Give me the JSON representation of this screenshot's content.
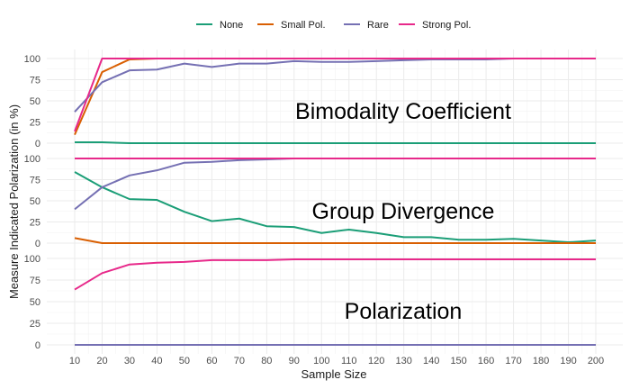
{
  "chart_data": {
    "type": "line",
    "xlabel": "Sample Size",
    "ylabel": "Measure Indicated Polarization (in %)",
    "x": [
      10,
      20,
      30,
      40,
      50,
      60,
      70,
      80,
      90,
      100,
      110,
      120,
      130,
      140,
      150,
      160,
      170,
      180,
      190,
      200
    ],
    "x_ticks": [
      "10",
      "20",
      "30",
      "40",
      "50",
      "60",
      "70",
      "80",
      "90",
      "100",
      "110",
      "120",
      "130",
      "140",
      "150",
      "160",
      "170",
      "180",
      "190",
      "200"
    ],
    "y_ticks": [
      "0",
      "25",
      "50",
      "75",
      "100"
    ],
    "ylim": [
      0,
      100
    ],
    "grid": true,
    "legend": {
      "position": "top",
      "entries": [
        {
          "name": "None",
          "color": "#1b9e77"
        },
        {
          "name": "Small Pol.",
          "color": "#d95f02"
        },
        {
          "name": "Rare",
          "color": "#7570b3"
        },
        {
          "name": "Strong Pol.",
          "color": "#e7298a"
        }
      ]
    },
    "panels": [
      {
        "label": "Bimodality Coefficient",
        "series": [
          {
            "name": "None",
            "color": "#1b9e77",
            "values": [
              1,
              1,
              0,
              0,
              0,
              0,
              0,
              0,
              0,
              0,
              0,
              0,
              0,
              0,
              0,
              0,
              0,
              0,
              0,
              0
            ]
          },
          {
            "name": "Small Pol.",
            "color": "#d95f02",
            "values": [
              10,
              84,
              99,
              100,
              100,
              100,
              100,
              100,
              100,
              100,
              100,
              100,
              100,
              100,
              100,
              100,
              100,
              100,
              100,
              100
            ]
          },
          {
            "name": "Rare",
            "color": "#7570b3",
            "values": [
              37,
              72,
              86,
              87,
              94,
              90,
              94,
              94,
              97,
              96,
              96,
              97,
              98,
              99,
              99,
              99,
              100,
              100,
              100,
              100
            ]
          },
          {
            "name": "Strong Pol.",
            "color": "#e7298a",
            "values": [
              14,
              100,
              100,
              100,
              100,
              100,
              100,
              100,
              100,
              100,
              100,
              100,
              100,
              100,
              100,
              100,
              100,
              100,
              100,
              100
            ]
          }
        ]
      },
      {
        "label": "Group Divergence",
        "series": [
          {
            "name": "None",
            "color": "#1b9e77",
            "values": [
              84,
              66,
              52,
              51,
              37,
              26,
              29,
              20,
              19,
              12,
              16,
              12,
              7,
              7,
              4,
              4,
              5,
              3,
              1,
              3
            ]
          },
          {
            "name": "Small Pol.",
            "color": "#d95f02",
            "values": [
              6,
              0,
              0,
              0,
              0,
              0,
              0,
              0,
              0,
              0,
              0,
              0,
              0,
              0,
              0,
              0,
              0,
              0,
              0,
              0
            ]
          },
          {
            "name": "Rare",
            "color": "#7570b3",
            "values": [
              40,
              66,
              80,
              86,
              95,
              96,
              98,
              99,
              100,
              100,
              100,
              100,
              100,
              100,
              100,
              100,
              100,
              100,
              100,
              100
            ]
          },
          {
            "name": "Strong Pol.",
            "color": "#e7298a",
            "values": [
              100,
              100,
              100,
              100,
              100,
              100,
              100,
              100,
              100,
              100,
              100,
              100,
              100,
              100,
              100,
              100,
              100,
              100,
              100,
              100
            ]
          }
        ]
      },
      {
        "label": "Polarization",
        "series": [
          {
            "name": "None",
            "color": "#1b9e77",
            "values": [
              0,
              0,
              0,
              0,
              0,
              0,
              0,
              0,
              0,
              0,
              0,
              0,
              0,
              0,
              0,
              0,
              0,
              0,
              0,
              0
            ]
          },
          {
            "name": "Small Pol.",
            "color": "#d95f02",
            "values": [
              0,
              0,
              0,
              0,
              0,
              0,
              0,
              0,
              0,
              0,
              0,
              0,
              0,
              0,
              0,
              0,
              0,
              0,
              0,
              0
            ]
          },
          {
            "name": "Rare",
            "color": "#7570b3",
            "values": [
              0,
              0,
              0,
              0,
              0,
              0,
              0,
              0,
              0,
              0,
              0,
              0,
              0,
              0,
              0,
              0,
              0,
              0,
              0,
              0
            ]
          },
          {
            "name": "Strong Pol.",
            "color": "#e7298a",
            "values": [
              64,
              83,
              93,
              95,
              96,
              98,
              98,
              98,
              99,
              99,
              99,
              99,
              99,
              99,
              99,
              99,
              99,
              99,
              99,
              99
            ]
          }
        ]
      }
    ]
  }
}
